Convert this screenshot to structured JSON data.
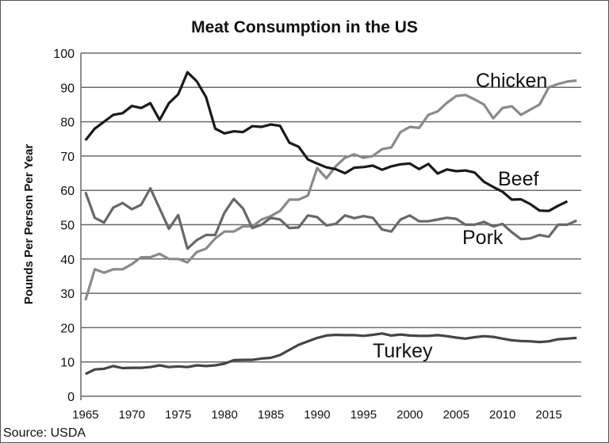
{
  "chart_data": {
    "type": "line",
    "title": "Meat Consumption in the US",
    "ylabel": "Pounds Per Person Per Year",
    "xlabel": "",
    "source": "Source: USDA",
    "ylim": [
      0,
      100
    ],
    "yticks": [
      0,
      10,
      20,
      30,
      40,
      50,
      60,
      70,
      80,
      90,
      100
    ],
    "xticks": [
      1965,
      1970,
      1975,
      1980,
      1985,
      1990,
      1995,
      2000,
      2005,
      2010,
      2015
    ],
    "grid": true,
    "legend": "inline labels",
    "x": [
      1965,
      1966,
      1967,
      1968,
      1969,
      1970,
      1971,
      1972,
      1973,
      1974,
      1975,
      1976,
      1977,
      1978,
      1979,
      1980,
      1981,
      1982,
      1983,
      1984,
      1985,
      1986,
      1987,
      1988,
      1989,
      1990,
      1991,
      1992,
      1993,
      1994,
      1995,
      1996,
      1997,
      1998,
      1999,
      2000,
      2001,
      2002,
      2003,
      2004,
      2005,
      2006,
      2007,
      2008,
      2009,
      2010,
      2011,
      2012,
      2013,
      2014,
      2015,
      2016,
      2017,
      2018
    ],
    "series": [
      {
        "name": "Beef",
        "color": "#1a1a1a",
        "values": [
          74.6,
          78,
          80,
          82,
          82.5,
          84.6,
          84,
          85.4,
          80.5,
          85.4,
          88,
          94.4,
          91.8,
          87.2,
          78,
          76.6,
          77.2,
          77,
          78.7,
          78.5,
          79.2,
          78.8,
          73.9,
          72.7,
          69,
          67.8,
          66.7,
          66.2,
          65,
          66.6,
          66.8,
          67.2,
          66,
          67,
          67.6,
          67.8,
          66.2,
          67.7,
          64.9,
          66.1,
          65.6,
          65.8,
          65.2,
          62.5,
          61,
          59.6,
          57.3,
          57.4,
          56,
          54.1,
          54,
          55.5,
          56.8,
          null
        ]
      },
      {
        "name": "Chicken",
        "color": "#8a8a8a",
        "values": [
          28,
          37,
          36,
          37,
          37,
          38.5,
          40.5,
          40.5,
          41.5,
          40,
          40,
          39,
          42,
          43,
          46,
          48,
          48,
          49.5,
          49.5,
          51.5,
          52.5,
          54,
          57.3,
          57.3,
          58.5,
          66.5,
          63.5,
          67,
          69.5,
          70.5,
          69.5,
          70,
          72,
          72.5,
          77,
          78.5,
          78.2,
          82,
          83,
          85.5,
          87.5,
          87.8,
          86.5,
          85,
          81,
          84,
          84.5,
          82,
          83.5,
          85,
          90,
          91,
          91.7,
          92
        ]
      },
      {
        "name": "Pork",
        "color": "#686868",
        "values": [
          59.5,
          52,
          50.6,
          55,
          56.3,
          54.5,
          55.8,
          60.6,
          54.7,
          48.8,
          52.8,
          43,
          45.5,
          47,
          47,
          53.5,
          57.5,
          54.7,
          49,
          50,
          52,
          51.5,
          49,
          49.2,
          52.7,
          52.2,
          49.8,
          50.2,
          52.7,
          51.9,
          52.5,
          52,
          48.6,
          48,
          51.5,
          52.7,
          51,
          51,
          51.5,
          52,
          51.7,
          50,
          50,
          50.8,
          49.5,
          50.2,
          47.8,
          45.8,
          46,
          47,
          46.5,
          50,
          50,
          51.2
        ]
      },
      {
        "name": "Turkey",
        "color": "#454545",
        "values": [
          6.5,
          7.8,
          8,
          8.8,
          8.2,
          8.3,
          8.3,
          8.5,
          9,
          8.5,
          8.7,
          8.5,
          9,
          8.8,
          9,
          9.5,
          10.5,
          10.6,
          10.6,
          11,
          11.2,
          12,
          13.5,
          15,
          16,
          17,
          17.7,
          17.9,
          17.8,
          17.8,
          17.6,
          17.9,
          18.3,
          17.7,
          18,
          17.7,
          17.6,
          17.6,
          17.8,
          17.5,
          17.1,
          16.8,
          17.2,
          17.5,
          17.3,
          16.8,
          16.3,
          16.1,
          16,
          15.8,
          16,
          16.6,
          16.8,
          17
        ]
      }
    ]
  }
}
